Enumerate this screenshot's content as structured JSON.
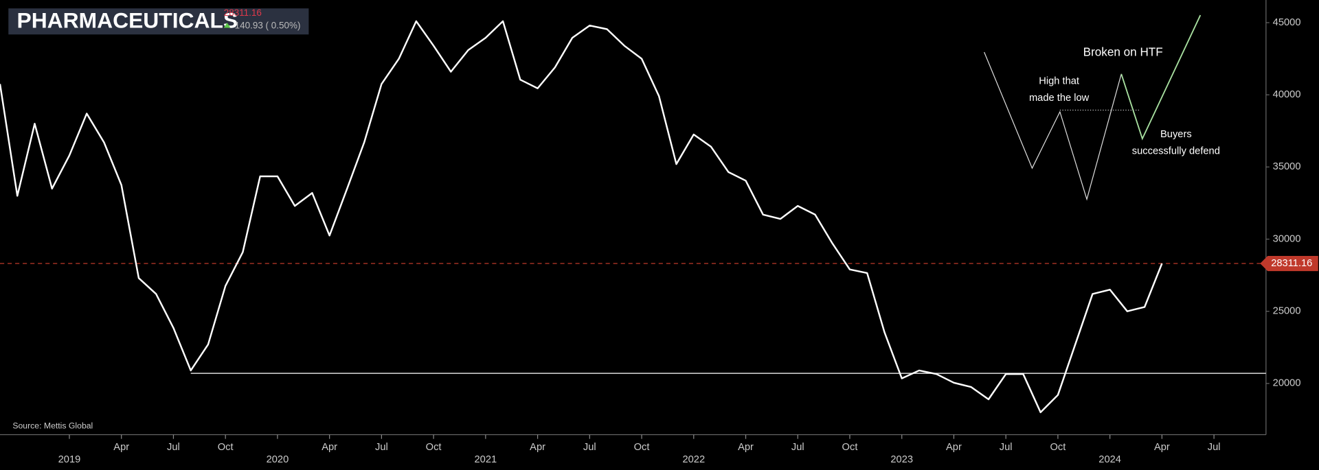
{
  "chart_data": {
    "type": "line",
    "title": "PHARMACEUTICALS",
    "last_price": 28311.16,
    "change": "140.93 ( 0.50%)",
    "source": "Source: Mettis Global",
    "x": [
      "2018-09",
      "2018-10",
      "2018-11",
      "2018-12",
      "2019-01",
      "2019-02",
      "2019-03",
      "2019-04",
      "2019-05",
      "2019-06",
      "2019-07",
      "2019-08",
      "2019-09",
      "2019-10",
      "2019-11",
      "2019-12",
      "2020-01",
      "2020-02",
      "2020-03",
      "2020-04",
      "2020-05",
      "2020-06",
      "2020-07",
      "2020-08",
      "2020-09",
      "2020-10",
      "2020-11",
      "2020-12",
      "2021-01",
      "2021-02",
      "2021-03",
      "2021-04",
      "2021-05",
      "2021-06",
      "2021-07",
      "2021-08",
      "2021-09",
      "2021-10",
      "2021-11",
      "2021-12",
      "2022-01",
      "2022-02",
      "2022-03",
      "2022-04",
      "2022-05",
      "2022-06",
      "2022-07",
      "2022-08",
      "2022-09",
      "2022-10",
      "2022-11",
      "2022-12",
      "2023-01",
      "2023-02",
      "2023-03",
      "2023-04",
      "2023-05",
      "2023-06",
      "2023-07",
      "2023-08",
      "2023-09",
      "2023-10",
      "2023-11",
      "2023-12",
      "2024-01",
      "2024-02",
      "2024-03",
      "2024-04"
    ],
    "series": [
      {
        "color": "#ffffff",
        "values": [
          40750,
          33000,
          38000,
          33500,
          35800,
          38700,
          36700,
          33750,
          27300,
          26200,
          23850,
          20900,
          22700,
          26760,
          29100,
          34350,
          34350,
          32300,
          33200,
          30250,
          33450,
          36700,
          40750,
          42500,
          45100,
          43400,
          41600,
          43100,
          43950,
          45100,
          41050,
          40450,
          41900,
          43950,
          44800,
          44550,
          43400,
          42500,
          39900,
          35200,
          37250,
          36400,
          34650,
          34050,
          31700,
          31400,
          32300,
          31700,
          29700,
          27900,
          27650,
          23550,
          20350,
          20900,
          20650,
          20050,
          19750,
          18900,
          20650,
          20650,
          18000,
          19200,
          22700,
          26200,
          26500,
          25000,
          25300,
          28311.16
        ]
      }
    ],
    "support_level": 20700,
    "price_line_color": "#c0392b",
    "xlim": [
      "2018-09",
      "2024-10"
    ],
    "xticks": [
      {
        "value": "2019-01",
        "label": "2019"
      },
      {
        "value": "2019-04",
        "label": "Apr"
      },
      {
        "value": "2019-07",
        "label": "Jul"
      },
      {
        "value": "2019-10",
        "label": "Oct"
      },
      {
        "value": "2020-01",
        "label": "2020"
      },
      {
        "value": "2020-04",
        "label": "Apr"
      },
      {
        "value": "2020-07",
        "label": "Jul"
      },
      {
        "value": "2020-10",
        "label": "Oct"
      },
      {
        "value": "2021-01",
        "label": "2021"
      },
      {
        "value": "2021-04",
        "label": "Apr"
      },
      {
        "value": "2021-07",
        "label": "Jul"
      },
      {
        "value": "2021-10",
        "label": "Oct"
      },
      {
        "value": "2022-01",
        "label": "2022"
      },
      {
        "value": "2022-04",
        "label": "Apr"
      },
      {
        "value": "2022-07",
        "label": "Jul"
      },
      {
        "value": "2022-10",
        "label": "Oct"
      },
      {
        "value": "2023-01",
        "label": "2023"
      },
      {
        "value": "2023-04",
        "label": "Apr"
      },
      {
        "value": "2023-07",
        "label": "Jul"
      },
      {
        "value": "2023-10",
        "label": "Oct"
      },
      {
        "value": "2024-01",
        "label": "2024"
      },
      {
        "value": "2024-04",
        "label": "Apr"
      },
      {
        "value": "2024-07",
        "label": "Jul"
      }
    ],
    "ylim": [
      16450,
      46570
    ],
    "yticks": [
      20000,
      25000,
      30000,
      35000,
      40000,
      45000
    ],
    "annotations": {
      "broken": "Broken on HTF",
      "high": [
        "High that",
        "made the low"
      ],
      "buyers": [
        "Buyers",
        "successfully defend"
      ]
    }
  }
}
